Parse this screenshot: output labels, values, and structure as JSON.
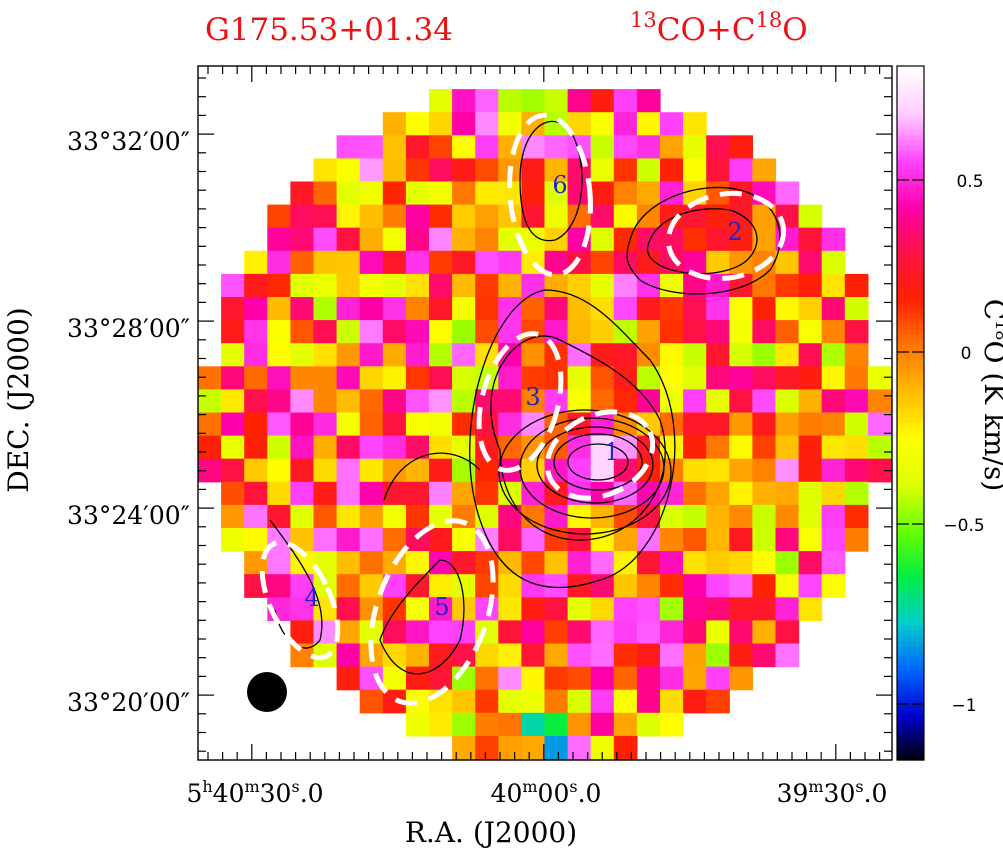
{
  "title_left": "G175.53+01.34",
  "title_right": {
    "sup1": "13",
    "t1": "CO+C",
    "sup2": "18",
    "t2": "O"
  },
  "colorbar": {
    "label_pre": "C",
    "label_sup": "18",
    "label_post": "O  (K km/s)",
    "range": [
      -1.15,
      0.85
    ],
    "ticks": [
      "0.5",
      "0",
      "−0.5",
      "−1"
    ],
    "colors": [
      "#000000",
      "#0000cc",
      "#0066ff",
      "#00cccc",
      "#00ee44",
      "#66ff00",
      "#ddff00",
      "#ffff00",
      "#ffbb00",
      "#ff7700",
      "#ff2200",
      "#ff1144",
      "#ff00aa",
      "#ff44ff",
      "#ffccff",
      "#ffffff"
    ]
  },
  "axes": {
    "xlabel": "R.A. (J2000)",
    "ylabel": "DEC. (J2000)",
    "x_ticks": [
      {
        "h": "5",
        "hs": "h",
        "m": "40",
        "ms": "m",
        "s": "30",
        "ss": "s",
        "f": ".0"
      },
      {
        "h": "",
        "hs": "",
        "m": "40",
        "ms": "m",
        "s": "00",
        "ss": "s",
        "f": ".0"
      },
      {
        "h": "",
        "hs": "",
        "m": "39",
        "ms": "m",
        "s": "30",
        "ss": "s",
        "f": ".0"
      }
    ],
    "y_ticks": [
      "33°32′00″",
      "33°28′00″",
      "33°24′00″",
      "33°20′00″"
    ]
  },
  "cores": [
    {
      "id": "1",
      "ra": "5:39:55.5",
      "dec": "33:25:10"
    },
    {
      "id": "2",
      "ra": "5:39:40.5",
      "dec": "33:30:10"
    },
    {
      "id": "3",
      "ra": "5:40:00.5",
      "dec": "33:26:35"
    },
    {
      "id": "4",
      "ra": "5:40:24.0",
      "dec": "33:22:00"
    },
    {
      "id": "5",
      "ra": "5:40:12.5",
      "dec": "33:21:55"
    },
    {
      "id": "6",
      "ra": "5:39:58.0",
      "dec": "33:31:00"
    }
  ],
  "chart_data": {
    "type": "heatmap",
    "title": "G175.53+01.34   13CO+C18O",
    "xlabel": "R.A. (J2000)",
    "ylabel": "DEC. (J2000)",
    "colorbar_label": "C18O (K km/s)",
    "colorbar_range": [
      -1.15,
      0.85
    ],
    "overlay": "13CO integrated intensity contours; dashed white ellipses mark cores 1-6",
    "beam": "filled circle, lower-left",
    "map_center": {
      "ra": "5:40:00",
      "dec": "33:26:00"
    }
  }
}
